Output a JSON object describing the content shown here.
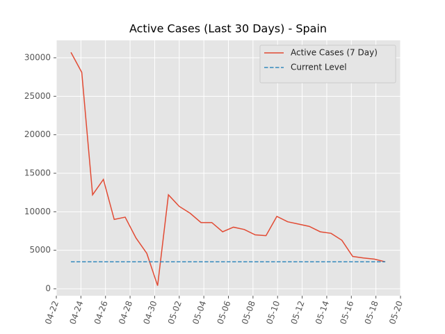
{
  "chart_data": {
    "type": "line",
    "title": "Active Cases (Last 30 Days) - Spain",
    "x": [
      18375.19,
      18376.07,
      18376.95,
      18377.83,
      18378.71,
      18379.6,
      18380.48,
      18381.36,
      18382.24,
      18383.12,
      18384.0,
      18384.89,
      18385.77,
      18386.65,
      18387.53,
      18388.41,
      18389.29,
      18390.18,
      18391.06,
      18391.94,
      18392.82,
      18393.7,
      18394.58,
      18395.47,
      18396.35,
      18397.23,
      18398.11,
      18398.99,
      18399.87,
      18400.76
    ],
    "series": [
      {
        "name": "Active Cases (7 Day)",
        "color": "#e24a33",
        "values": [
          30700,
          28100,
          12200,
          14200,
          9000,
          9300,
          6600,
          4600,
          400,
          12200,
          10700,
          9800,
          8600,
          8600,
          7400,
          8000,
          7700,
          7000,
          6900,
          9400,
          8700,
          8400,
          8100,
          7400,
          7200,
          6300,
          4200,
          4000,
          3850,
          3500
        ]
      }
    ],
    "hlines": [
      {
        "name": "Current Level",
        "color": "#348abd",
        "value": 3500,
        "style": "dashed"
      }
    ],
    "xlim": [
      18374,
      18402
    ],
    "xticks": [
      {
        "value": 18374,
        "label": "04-22"
      },
      {
        "value": 18376,
        "label": "04-24"
      },
      {
        "value": 18378,
        "label": "04-26"
      },
      {
        "value": 18380,
        "label": "04-28"
      },
      {
        "value": 18382,
        "label": "04-30"
      },
      {
        "value": 18384,
        "label": "05-02"
      },
      {
        "value": 18386,
        "label": "05-04"
      },
      {
        "value": 18388,
        "label": "05-06"
      },
      {
        "value": 18390,
        "label": "05-08"
      },
      {
        "value": 18392,
        "label": "05-10"
      },
      {
        "value": 18394,
        "label": "05-12"
      },
      {
        "value": 18396,
        "label": "05-14"
      },
      {
        "value": 18398,
        "label": "05-16"
      },
      {
        "value": 18400,
        "label": "05-18"
      },
      {
        "value": 18402,
        "label": "05-20"
      }
    ],
    "ylim": [
      -904,
      32258
    ],
    "yticks": [
      0,
      5000,
      10000,
      15000,
      20000,
      25000,
      30000
    ],
    "grid": true,
    "legend": "upper right"
  }
}
